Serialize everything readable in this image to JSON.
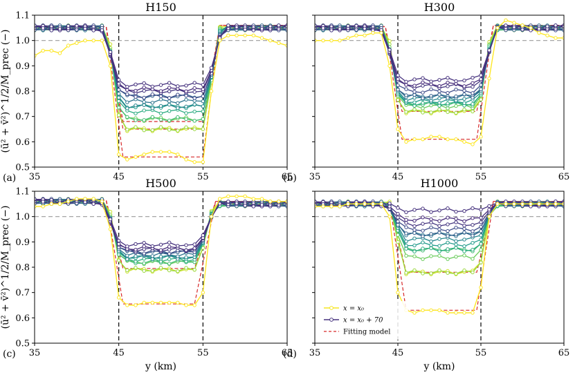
{
  "chart_data": [
    {
      "panel_label": "(a)",
      "title": "H150",
      "type": "line",
      "xlim": [
        35,
        65
      ],
      "ylim": [
        0.5,
        1.1
      ],
      "xticks": [
        "35",
        "45",
        "55",
        "65"
      ],
      "yticks": [
        "0.5",
        "0.6",
        "0.7",
        "0.8",
        "0.9",
        "1.0",
        "1.1"
      ],
      "xlabel": "",
      "ylabel": "(ū² + v̄²)^1/2/M_prec (−)",
      "vlines": [
        45,
        55
      ],
      "hline": 1.0,
      "edges": [
        43.5,
        45.5,
        55.0,
        57.0
      ],
      "upstream_level": 1.05,
      "first_curve": {
        "x": [
          35,
          36,
          37,
          38,
          39,
          40,
          41,
          42,
          43,
          44,
          45,
          46,
          47,
          48,
          49,
          50,
          51,
          52,
          53,
          54,
          55,
          56,
          57,
          58,
          59,
          60,
          61,
          62,
          63,
          64,
          65
        ],
        "y": [
          0.94,
          0.96,
          0.96,
          0.95,
          0.98,
          0.99,
          1.0,
          1.0,
          1.0,
          0.9,
          0.55,
          0.53,
          0.54,
          0.55,
          0.56,
          0.56,
          0.56,
          0.55,
          0.53,
          0.52,
          0.52,
          0.8,
          1.0,
          1.02,
          1.02,
          1.02,
          1.02,
          1.01,
          1.0,
          0.99,
          0.98
        ]
      },
      "inner_levels": [
        0.53,
        0.65,
        0.69,
        0.72,
        0.74,
        0.76,
        0.78,
        0.8,
        0.82
      ],
      "last_curve_peak": 0.83,
      "fit_levels": [
        0.54,
        0.65,
        0.68
      ]
    },
    {
      "panel_label": "(b)",
      "title": "H300",
      "type": "line",
      "xlim": [
        35,
        65
      ],
      "ylim": [
        0.5,
        1.1
      ],
      "xticks": [
        "35",
        "45",
        "55",
        "65"
      ],
      "yticks": [],
      "xlabel": "",
      "ylabel": "",
      "vlines": [
        45,
        55
      ],
      "hline": 1.0,
      "edges": [
        43.5,
        45.5,
        54.5,
        56.5
      ],
      "upstream_level": 1.05,
      "first_curve": {
        "x": [
          35,
          36,
          37,
          38,
          39,
          40,
          41,
          42,
          43,
          44,
          45,
          46,
          47,
          48,
          49,
          50,
          51,
          52,
          53,
          54,
          55,
          56,
          57,
          58,
          59,
          60,
          61,
          62,
          63,
          64,
          65
        ],
        "y": [
          1.0,
          1.0,
          1.0,
          1.0,
          1.01,
          1.02,
          1.02,
          1.03,
          1.03,
          0.9,
          0.65,
          0.6,
          0.61,
          0.61,
          0.62,
          0.62,
          0.61,
          0.61,
          0.6,
          0.59,
          0.62,
          0.85,
          1.05,
          1.08,
          1.07,
          1.06,
          1.05,
          1.03,
          1.02,
          1.01,
          1.01
        ]
      },
      "inner_levels": [
        0.61,
        0.72,
        0.74,
        0.75,
        0.76,
        0.77,
        0.78,
        0.8,
        0.82,
        0.84
      ],
      "last_curve_peak": 0.85,
      "fit_levels": [
        0.61,
        0.72
      ]
    },
    {
      "panel_label": "(c)",
      "title": "H500",
      "type": "line",
      "xlim": [
        35,
        65
      ],
      "ylim": [
        0.5,
        1.1
      ],
      "xticks": [
        "35",
        "45",
        "55",
        "65"
      ],
      "yticks": [
        "0.5",
        "0.6",
        "0.7",
        "0.8",
        "0.9",
        "1.0",
        "1.1"
      ],
      "xlabel": "y (km)",
      "ylabel": "(ū² + v̄²)^1/2/M_prec (−)",
      "vlines": [
        45,
        55
      ],
      "hline": 1.0,
      "edges": [
        43.5,
        45.5,
        54.0,
        56.5
      ],
      "upstream_level": 1.06,
      "first_curve": {
        "x": [
          35,
          36,
          37,
          38,
          39,
          40,
          41,
          42,
          43,
          44,
          45,
          46,
          47,
          48,
          49,
          50,
          51,
          52,
          53,
          54,
          55,
          56,
          57,
          58,
          59,
          60,
          61,
          62,
          63,
          64,
          65
        ],
        "y": [
          1.04,
          1.04,
          1.05,
          1.05,
          1.06,
          1.07,
          1.07,
          1.07,
          1.06,
          0.95,
          0.68,
          0.65,
          0.65,
          0.66,
          0.66,
          0.66,
          0.66,
          0.66,
          0.65,
          0.65,
          0.7,
          1.0,
          1.07,
          1.08,
          1.08,
          1.08,
          1.07,
          1.07,
          1.06,
          1.06,
          1.06
        ]
      },
      "inner_levels": [
        0.66,
        0.79,
        0.82,
        0.83,
        0.84,
        0.85,
        0.86,
        0.87,
        0.89
      ],
      "last_curve_peak": 0.89,
      "fit_levels": [
        0.655,
        0.795
      ]
    },
    {
      "panel_label": "(d)",
      "title": "H1000",
      "type": "line",
      "xlim": [
        35,
        65
      ],
      "ylim": [
        0.5,
        1.1
      ],
      "xticks": [
        "35",
        "45",
        "55",
        "65"
      ],
      "yticks": [],
      "xlabel": "y (km)",
      "ylabel": "",
      "vlines": [
        45,
        55
      ],
      "hline": 1.0,
      "edges": [
        44.0,
        46.0,
        54.5,
        56.5
      ],
      "upstream_level": 1.05,
      "first_curve": {
        "x": [
          35,
          36,
          37,
          38,
          39,
          40,
          41,
          42,
          43,
          44,
          45,
          46,
          47,
          48,
          49,
          50,
          51,
          52,
          53,
          54,
          55,
          56,
          57,
          58,
          59,
          60,
          61,
          62,
          63,
          64,
          65
        ],
        "y": [
          1.04,
          1.04,
          1.04,
          1.04,
          1.05,
          1.05,
          1.05,
          1.05,
          1.05,
          1.0,
          0.7,
          0.63,
          0.62,
          0.63,
          0.63,
          0.63,
          0.62,
          0.62,
          0.62,
          0.62,
          0.72,
          1.0,
          1.05,
          1.05,
          1.05,
          1.05,
          1.05,
          1.05,
          1.05,
          1.05,
          1.05
        ]
      },
      "inner_levels": [
        0.62,
        0.78,
        0.84,
        0.87,
        0.89,
        0.91,
        0.93,
        0.95,
        0.97,
        1.0
      ],
      "last_curve_peak": 1.05,
      "fit_levels": [
        0.63,
        0.78
      ]
    }
  ],
  "legend": {
    "entries": [
      {
        "label": "x = x₀",
        "color": "#f6e620",
        "marker": "circle"
      },
      {
        "label": "x = x₀ + 70",
        "color": "#46327e",
        "marker": "circle"
      },
      {
        "label": "Fitting model",
        "color": "#d62728",
        "marker": "dashed"
      }
    ]
  },
  "colors": {
    "colormap": [
      "#fde725",
      "#b5de2b",
      "#6ece58",
      "#35b779",
      "#1f9e89",
      "#26828e",
      "#31688e",
      "#3e4989",
      "#482878",
      "#46327e"
    ],
    "fit": "#d62728",
    "reference": "#999999"
  }
}
